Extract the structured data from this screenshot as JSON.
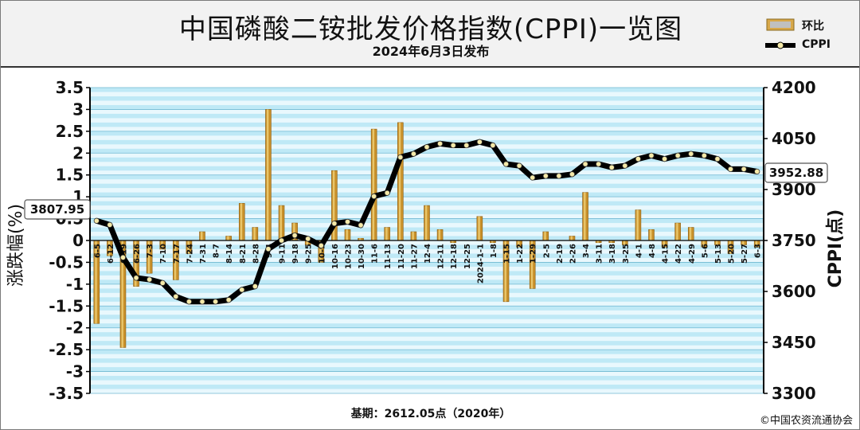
{
  "header": {
    "title": "中国磷酸二铵批发价格指数(CPPI)一览图",
    "subtitle": "2024年6月3日发布"
  },
  "legend": {
    "bar_label": "环比",
    "line_label": "CPPI"
  },
  "colors": {
    "bar": "#c8902a",
    "line": "#000000",
    "marker": "#f5e9a8",
    "plot_band_a": "#bfe9f6",
    "plot_band_b": "#e9f8fd"
  },
  "footer": {
    "base": "基期：2612.05点（2020年）",
    "copyright": "©中国农资流通协会"
  },
  "chart_data": {
    "type": "bar",
    "y_left_label": "涨跌幅(%)",
    "y_right_label": "CPPI(点)",
    "y_left_ticks": [
      "3.5",
      "3",
      "2.5",
      "2",
      "1.5",
      "1",
      "0.5",
      "0",
      "-0.5",
      "-1",
      "-1.5",
      "-2",
      "-2.5",
      "-3",
      "-3.5"
    ],
    "y_right_ticks": [
      "4200",
      "4050",
      "3900",
      "3750",
      "3600",
      "3450",
      "3300"
    ],
    "ylim_left": [
      -3.5,
      3.5
    ],
    "ylim_right": [
      3300,
      4200
    ],
    "grid": true,
    "legend_position": "top-right",
    "first_value_label": "3807.95",
    "last_value_label": "3952.88",
    "categories": [
      "6-5",
      "6-12",
      "6-19",
      "6-26",
      "7-3",
      "7-10",
      "7-17",
      "7-24",
      "7-31",
      "8-7",
      "8-14",
      "8-21",
      "8-28",
      "9-4",
      "9-11",
      "9-18",
      "9-25",
      "10-9",
      "10-16",
      "10-23",
      "10-30",
      "11-6",
      "11-13",
      "11-20",
      "11-27",
      "12-4",
      "12-11",
      "12-18",
      "12-25",
      "2024-1-1",
      "1-8",
      "1-15",
      "1-22",
      "1-29",
      "2-5",
      "2-19",
      "2-26",
      "3-4",
      "3-11",
      "3-18",
      "3-25",
      "4-1",
      "4-8",
      "4-15",
      "4-22",
      "4-29",
      "5-6",
      "5-13",
      "5-20",
      "5-27",
      "6-3"
    ],
    "series": [
      {
        "name": "环比",
        "axis": "left",
        "values": [
          -1.9,
          -0.35,
          -2.45,
          -1.05,
          -0.75,
          -0.2,
          -0.9,
          -0.3,
          0.2,
          0.0,
          0.1,
          0.85,
          0.3,
          3.0,
          0.8,
          0.4,
          -0.1,
          -0.5,
          1.6,
          0.25,
          0.05,
          2.55,
          0.3,
          2.7,
          0.2,
          0.8,
          0.25,
          -0.05,
          0.0,
          0.55,
          -0.05,
          -1.4,
          -0.15,
          -1.1,
          0.2,
          0.0,
          0.1,
          1.1,
          -0.05,
          -0.05,
          -0.1,
          0.7,
          0.25,
          -0.15,
          0.4,
          0.3,
          -0.15,
          -0.1,
          -0.3,
          -0.1,
          -0.15
        ]
      },
      {
        "name": "CPPI",
        "axis": "right",
        "values": [
          3807.95,
          3796,
          3700,
          3640,
          3635,
          3625,
          3585,
          3570,
          3570,
          3570,
          3575,
          3605,
          3615,
          3725,
          3750,
          3765,
          3755,
          3735,
          3800,
          3805,
          3795,
          3880,
          3890,
          3995,
          4005,
          4025,
          4035,
          4030,
          4030,
          4040,
          4030,
          3975,
          3970,
          3935,
          3940,
          3940,
          3945,
          3975,
          3975,
          3965,
          3970,
          3990,
          4000,
          3990,
          4000,
          4005,
          4000,
          3990,
          3960,
          3960,
          3952.88
        ]
      }
    ]
  }
}
